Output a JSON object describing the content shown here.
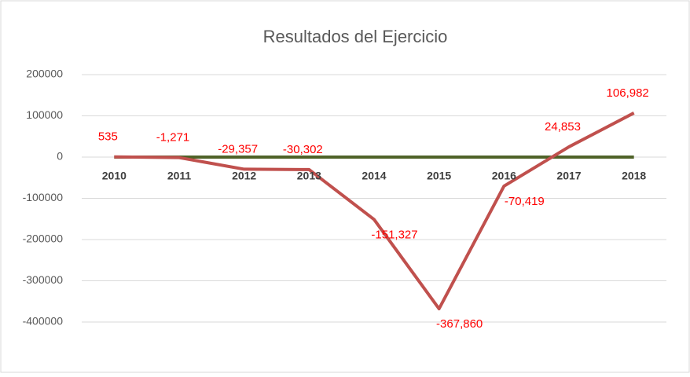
{
  "chart_data": {
    "type": "line",
    "title": "Resultados del Ejercicio",
    "categories": [
      "2010",
      "2011",
      "2012",
      "2013",
      "2014",
      "2015",
      "2016",
      "2017",
      "2018"
    ],
    "series": [
      {
        "color": "#c0504d",
        "values": [
          535,
          -1271,
          -29357,
          -30302,
          -151327,
          -367860,
          -70419,
          24853,
          106982
        ],
        "value_labels": [
          "535",
          "-1,271",
          "-29,357",
          "-30,302",
          "-151,327",
          "-367,860",
          "-70,419",
          "24,853",
          "106,982"
        ]
      },
      {
        "color": "#4f6228",
        "values": [
          0,
          0,
          0,
          0,
          0,
          0,
          0,
          0,
          0
        ]
      }
    ],
    "ylim": [
      -400000,
      200000
    ],
    "yticks": [
      -400000,
      -300000,
      -200000,
      -100000,
      0,
      100000,
      200000
    ],
    "grid": true
  }
}
